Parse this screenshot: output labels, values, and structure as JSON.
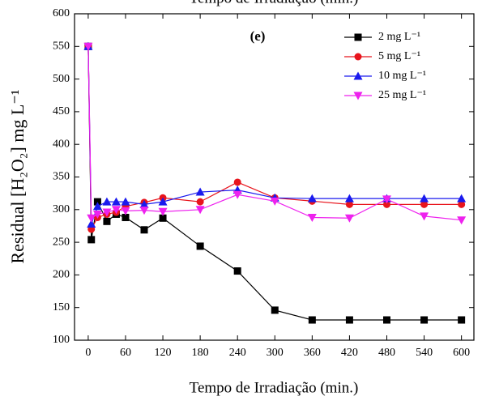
{
  "chart_data": {
    "type": "line",
    "top_label": "Tempo de Irradiação (min.)",
    "annotation": "(e)",
    "x_label": "Tempo de Irradiação (min.)",
    "y_label": "Residual [H₂O₂] mg L⁻¹",
    "x": [
      0,
      5,
      15,
      30,
      45,
      60,
      90,
      120,
      180,
      240,
      300,
      360,
      420,
      480,
      540,
      600
    ],
    "series": [
      {
        "name": "2 mg L⁻¹",
        "color": "#000000",
        "marker": "square",
        "values": [
          550,
          254,
          312,
          282,
          293,
          288,
          269,
          287,
          244,
          206,
          146,
          131,
          131,
          131,
          131,
          131
        ]
      },
      {
        "name": "5 mg L⁻¹",
        "color": "#e8141c",
        "marker": "circle",
        "values": [
          550,
          270,
          288,
          293,
          296,
          305,
          311,
          318,
          312,
          342,
          318,
          313,
          308,
          308,
          308,
          308
        ]
      },
      {
        "name": "10 mg L⁻¹",
        "color": "#1a1aee",
        "marker": "triangle-up",
        "values": [
          550,
          278,
          305,
          312,
          312,
          312,
          308,
          312,
          327,
          330,
          318,
          317,
          317,
          317,
          317,
          317
        ]
      },
      {
        "name": "25 mg L⁻¹",
        "color": "#ee22ee",
        "marker": "triangle-down",
        "values": [
          550,
          287,
          293,
          296,
          300,
          298,
          299,
          297,
          300,
          323,
          313,
          288,
          287,
          316,
          290,
          284
        ]
      }
    ],
    "xlim": [
      -22,
      620
    ],
    "ylim": [
      100,
      600
    ],
    "xticks": [
      0,
      60,
      120,
      180,
      240,
      300,
      360,
      420,
      480,
      540,
      600
    ],
    "yticks": [
      100,
      150,
      200,
      250,
      300,
      350,
      400,
      450,
      500,
      550,
      600
    ],
    "legend": "top-right"
  }
}
